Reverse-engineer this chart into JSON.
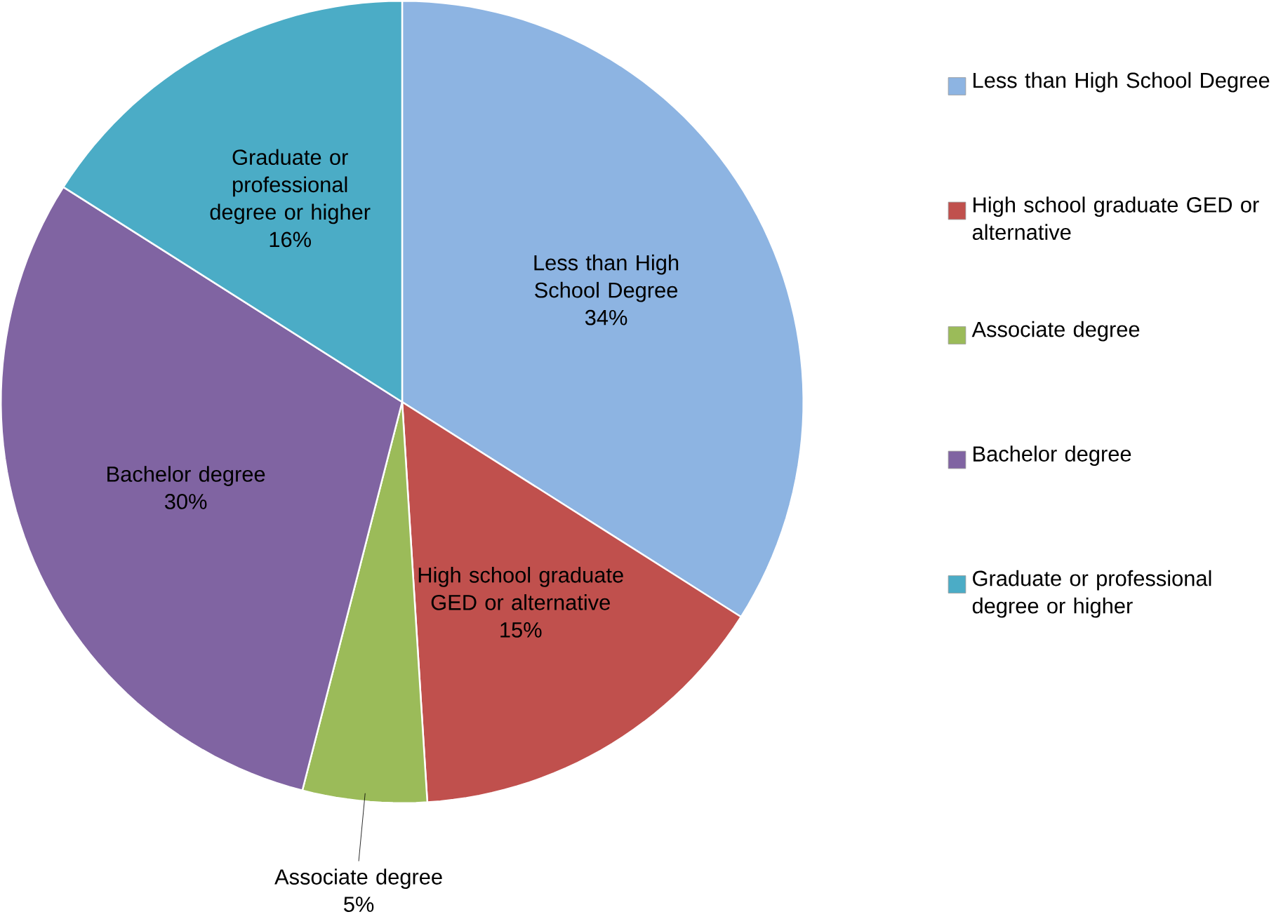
{
  "chart_data": {
    "type": "pie",
    "categories": [
      "Less than High School Degree",
      "High school graduate GED or alternative",
      "Associate degree",
      "Bachelor degree",
      "Graduate or professional degree or higher"
    ],
    "values": [
      34,
      15,
      5,
      30,
      16
    ],
    "value_labels": [
      "34%",
      "15%",
      "5%",
      "30%",
      "16%"
    ],
    "colors": [
      "#8db4e2",
      "#c0504d",
      "#9bbb59",
      "#8064a2",
      "#4bacc6"
    ],
    "legend": "right"
  }
}
